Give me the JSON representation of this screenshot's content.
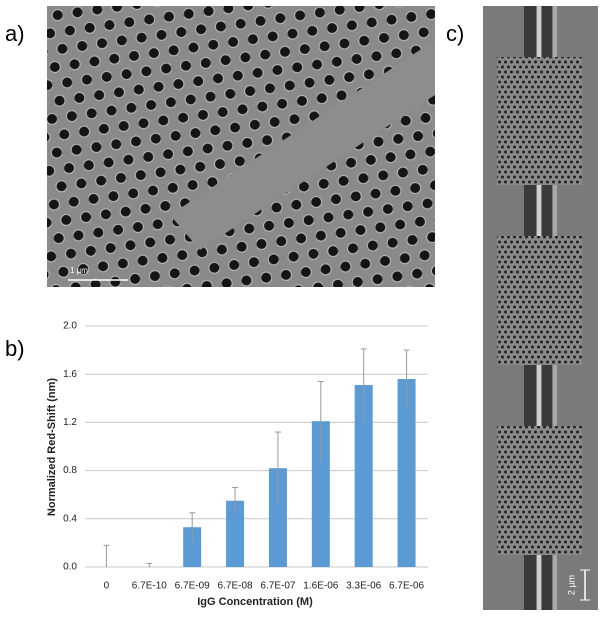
{
  "panels": {
    "a": {
      "label": "a)",
      "scale_bar": "1 µm"
    },
    "b": {
      "label": "b)"
    },
    "c": {
      "label": "c)",
      "scale_bar": "2 µm"
    }
  },
  "chart_data": {
    "type": "bar",
    "xlabel": "IgG Concentration (M)",
    "ylabel": "Normalized Red-Shift (nm)",
    "categories": [
      "0",
      "6.7E-10",
      "6.7E-09",
      "6.7E-08",
      "6.7E-07",
      "1.6E-06",
      "3.3E-06",
      "6.7E-06"
    ],
    "values": [
      0,
      0,
      0.33,
      0.55,
      0.82,
      1.21,
      1.51,
      1.56
    ],
    "errors": [
      0.18,
      0.03,
      0.12,
      0.11,
      0.3,
      0.33,
      0.3,
      0.24
    ],
    "color": "#5b9bd5",
    "error_color": "#999999",
    "ylim": [
      0,
      2
    ],
    "yticks": [
      {
        "value": 0,
        "label": "0.0"
      },
      {
        "value": 0.4,
        "label": "0.4"
      },
      {
        "value": 0.8,
        "label": "0.8"
      },
      {
        "value": 1.2,
        "label": "1.2"
      },
      {
        "value": 1.6,
        "label": "1.6"
      },
      {
        "value": 2,
        "label": "2.0"
      }
    ],
    "grid": true
  }
}
